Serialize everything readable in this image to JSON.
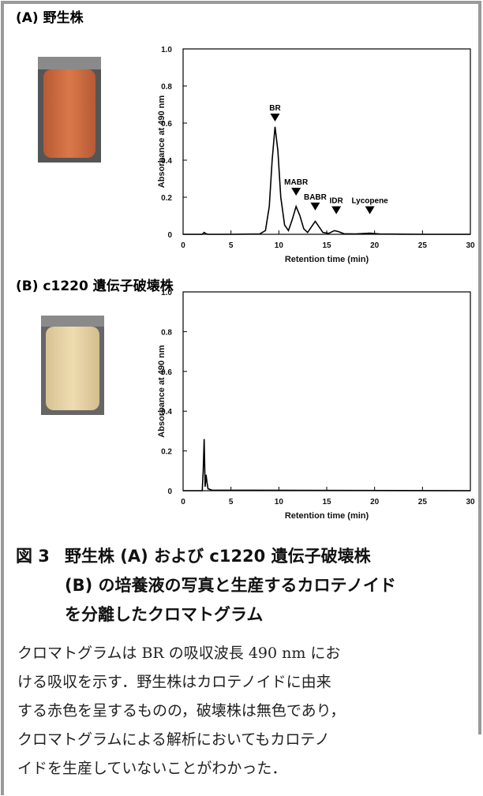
{
  "chart_data": [
    {
      "type": "line",
      "title": "(A) 野生株",
      "x_label": "Retention time (min)",
      "y_label": "Absorbance at 490 nm",
      "xlim": [
        0,
        30
      ],
      "ylim": [
        0,
        1
      ],
      "xticks": [
        0,
        5,
        10,
        15,
        20,
        25,
        30
      ],
      "yticks": [
        0,
        0.2,
        0.4,
        0.6,
        0.8,
        {
          "value": 1,
          "label": "1.0"
        }
      ],
      "annotations": [
        "BR",
        "MABR",
        "BABR",
        "IDR",
        "Lycopene"
      ],
      "x": [
        0,
        2,
        2.2,
        2.4,
        2.6,
        5,
        8,
        8.6,
        9.0,
        9.3,
        9.6,
        9.9,
        10.2,
        10.6,
        11.0,
        11.4,
        11.8,
        12.2,
        12.6,
        13.0,
        13.4,
        13.8,
        14.2,
        14.6,
        15.2,
        15.8,
        16.2,
        16.8,
        18,
        19.5,
        20.5,
        25,
        30
      ],
      "series": [
        {
          "color": "#000000",
          "values": [
            0,
            0,
            0.01,
            0.003,
            0,
            0,
            0.002,
            0.02,
            0.15,
            0.4,
            0.58,
            0.45,
            0.2,
            0.05,
            0.02,
            0.08,
            0.15,
            0.1,
            0.03,
            0.01,
            0.04,
            0.07,
            0.04,
            0.01,
            0.005,
            0.02,
            0.015,
            0.003,
            0.002,
            0.006,
            0.002,
            0,
            0
          ]
        }
      ]
    },
    {
      "type": "line",
      "title": "(B) c1220 遺伝子破壊株",
      "x_label": "Retention time (min)",
      "y_label": "Absorbance at 490 nm",
      "xlim": [
        0,
        30
      ],
      "ylim": [
        0,
        1
      ],
      "xticks": [
        0,
        5,
        10,
        15,
        20,
        25,
        30
      ],
      "yticks": [
        0,
        0.2,
        0.4,
        0.6,
        0.8,
        {
          "value": 1,
          "label": "1.0"
        }
      ],
      "x": [
        0,
        2,
        2.1,
        2.2,
        2.3,
        2.4,
        2.5,
        2.6,
        3,
        30
      ],
      "series": [
        {
          "color": "#000000",
          "values": [
            0,
            0,
            0.1,
            0.26,
            0.02,
            0.08,
            0.04,
            0.01,
            0.003,
            0
          ]
        }
      ]
    }
  ],
  "caption": {
    "label": "図 3",
    "title_lines": [
      "野生株 (A) および c1220 遺伝子破壊株",
      "(B) の培養液の写真と生産するカロテノイド",
      "を分離したクロマトグラム"
    ],
    "body_lines": [
      "クロマトグラムは BR の吸収波長 490 nm にお",
      "ける吸収を示す．野生株はカロテノイドに由来",
      "する赤色を呈するものの，破壊株は無色であり，",
      "クロマトグラムによる解析においてもカロテノ",
      "イドを生産していないことがわかった．"
    ]
  }
}
